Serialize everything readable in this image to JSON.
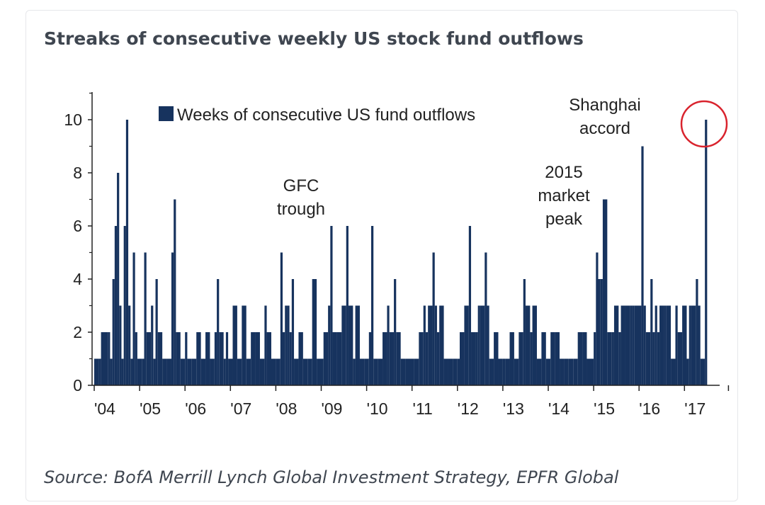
{
  "header": {
    "title": "Streaks of consecutive weekly US stock fund outflows"
  },
  "footer": {
    "source": "Source: BofA Merrill Lynch Global Investment Strategy, EPFR Global"
  },
  "chart_data": {
    "type": "bar",
    "title": "Streaks of consecutive weekly US stock fund outflows",
    "xlabel": "",
    "ylabel": "",
    "ylim": [
      0,
      11
    ],
    "xlim": [
      2004,
      2018
    ],
    "y_ticks": [
      0,
      2,
      4,
      6,
      8,
      10
    ],
    "x_ticks": [
      {
        "year": 2004,
        "label": "'04"
      },
      {
        "year": 2005,
        "label": "'05"
      },
      {
        "year": 2006,
        "label": "'06"
      },
      {
        "year": 2007,
        "label": "'07"
      },
      {
        "year": 2008,
        "label": "'08"
      },
      {
        "year": 2009,
        "label": "'09"
      },
      {
        "year": 2010,
        "label": "'10"
      },
      {
        "year": 2011,
        "label": "'11"
      },
      {
        "year": 2012,
        "label": "'12"
      },
      {
        "year": 2013,
        "label": "'13"
      },
      {
        "year": 2014,
        "label": "'14"
      },
      {
        "year": 2015,
        "label": "'15"
      },
      {
        "year": 2016,
        "label": "'16"
      },
      {
        "year": 2017,
        "label": "'17"
      }
    ],
    "legend": {
      "label": "Weeks of consecutive US fund outflows",
      "position": "top-left",
      "color": "#17335e"
    },
    "series": [
      {
        "name": "Weeks of consecutive US fund outflows",
        "color": "#17335e",
        "points": [
          [
            2004.0,
            1
          ],
          [
            2004.1,
            1
          ],
          [
            2004.15,
            2
          ],
          [
            2004.3,
            2
          ],
          [
            2004.35,
            1
          ],
          [
            2004.4,
            4
          ],
          [
            2004.45,
            6
          ],
          [
            2004.5,
            8
          ],
          [
            2004.55,
            3
          ],
          [
            2004.6,
            1
          ],
          [
            2004.65,
            6
          ],
          [
            2004.7,
            10
          ],
          [
            2004.75,
            3
          ],
          [
            2004.8,
            1
          ],
          [
            2004.85,
            5
          ],
          [
            2004.9,
            2
          ],
          [
            2004.95,
            1
          ],
          [
            2005.05,
            1
          ],
          [
            2005.1,
            5
          ],
          [
            2005.15,
            2
          ],
          [
            2005.25,
            3
          ],
          [
            2005.3,
            1
          ],
          [
            2005.35,
            4
          ],
          [
            2005.4,
            2
          ],
          [
            2005.5,
            1
          ],
          [
            2005.6,
            1
          ],
          [
            2005.7,
            5
          ],
          [
            2005.75,
            7
          ],
          [
            2005.8,
            2
          ],
          [
            2005.9,
            1
          ],
          [
            2006.0,
            2
          ],
          [
            2006.05,
            1
          ],
          [
            2006.15,
            1
          ],
          [
            2006.25,
            2
          ],
          [
            2006.35,
            1
          ],
          [
            2006.45,
            2
          ],
          [
            2006.55,
            1
          ],
          [
            2006.65,
            2
          ],
          [
            2006.7,
            4
          ],
          [
            2006.75,
            2
          ],
          [
            2006.85,
            1
          ],
          [
            2006.9,
            2
          ],
          [
            2006.95,
            1
          ],
          [
            2007.05,
            3
          ],
          [
            2007.15,
            1
          ],
          [
            2007.25,
            3
          ],
          [
            2007.35,
            1
          ],
          [
            2007.45,
            2
          ],
          [
            2007.55,
            2
          ],
          [
            2007.65,
            1
          ],
          [
            2007.75,
            3
          ],
          [
            2007.8,
            2
          ],
          [
            2007.9,
            1
          ],
          [
            2008.0,
            1
          ],
          [
            2008.1,
            5
          ],
          [
            2008.15,
            2
          ],
          [
            2008.2,
            3
          ],
          [
            2008.25,
            3
          ],
          [
            2008.3,
            2
          ],
          [
            2008.35,
            4
          ],
          [
            2008.4,
            1
          ],
          [
            2008.5,
            2
          ],
          [
            2008.6,
            1
          ],
          [
            2008.7,
            1
          ],
          [
            2008.8,
            4
          ],
          [
            2008.9,
            1
          ],
          [
            2009.0,
            1
          ],
          [
            2009.05,
            2
          ],
          [
            2009.15,
            3
          ],
          [
            2009.2,
            6
          ],
          [
            2009.25,
            2
          ],
          [
            2009.35,
            2
          ],
          [
            2009.45,
            3
          ],
          [
            2009.55,
            6
          ],
          [
            2009.6,
            3
          ],
          [
            2009.7,
            1
          ],
          [
            2009.75,
            3
          ],
          [
            2009.85,
            1
          ],
          [
            2009.95,
            1
          ],
          [
            2010.05,
            2
          ],
          [
            2010.1,
            6
          ],
          [
            2010.15,
            1
          ],
          [
            2010.25,
            1
          ],
          [
            2010.35,
            2
          ],
          [
            2010.45,
            3
          ],
          [
            2010.5,
            2
          ],
          [
            2010.6,
            4
          ],
          [
            2010.65,
            2
          ],
          [
            2010.75,
            1
          ],
          [
            2010.85,
            1
          ],
          [
            2010.95,
            1
          ],
          [
            2011.05,
            1
          ],
          [
            2011.15,
            2
          ],
          [
            2011.25,
            3
          ],
          [
            2011.3,
            2
          ],
          [
            2011.35,
            3
          ],
          [
            2011.45,
            5
          ],
          [
            2011.5,
            3
          ],
          [
            2011.55,
            2
          ],
          [
            2011.6,
            3
          ],
          [
            2011.7,
            1
          ],
          [
            2011.8,
            1
          ],
          [
            2011.9,
            1
          ],
          [
            2012.0,
            1
          ],
          [
            2012.05,
            2
          ],
          [
            2012.15,
            3
          ],
          [
            2012.25,
            6
          ],
          [
            2012.3,
            2
          ],
          [
            2012.4,
            2
          ],
          [
            2012.45,
            3
          ],
          [
            2012.5,
            3
          ],
          [
            2012.6,
            5
          ],
          [
            2012.65,
            3
          ],
          [
            2012.7,
            1
          ],
          [
            2012.8,
            2
          ],
          [
            2012.9,
            1
          ],
          [
            2013.0,
            1
          ],
          [
            2013.05,
            1
          ],
          [
            2013.15,
            2
          ],
          [
            2013.25,
            1
          ],
          [
            2013.35,
            2
          ],
          [
            2013.45,
            4
          ],
          [
            2013.5,
            3
          ],
          [
            2013.6,
            2
          ],
          [
            2013.65,
            3
          ],
          [
            2013.75,
            1
          ],
          [
            2013.85,
            2
          ],
          [
            2013.95,
            1
          ],
          [
            2014.05,
            2
          ],
          [
            2014.15,
            2
          ],
          [
            2014.25,
            1
          ],
          [
            2014.35,
            1
          ],
          [
            2014.45,
            1
          ],
          [
            2014.55,
            1
          ],
          [
            2014.65,
            2
          ],
          [
            2014.75,
            2
          ],
          [
            2014.85,
            1
          ],
          [
            2015.0,
            2
          ],
          [
            2015.05,
            5
          ],
          [
            2015.1,
            4
          ],
          [
            2015.15,
            4
          ],
          [
            2015.2,
            7
          ],
          [
            2015.3,
            2
          ],
          [
            2015.4,
            2
          ],
          [
            2015.45,
            3
          ],
          [
            2015.55,
            2
          ],
          [
            2015.6,
            3
          ],
          [
            2015.7,
            3
          ],
          [
            2015.8,
            3
          ],
          [
            2015.85,
            3
          ],
          [
            2015.9,
            3
          ],
          [
            2015.95,
            3
          ],
          [
            2016.05,
            9
          ],
          [
            2016.1,
            3
          ],
          [
            2016.15,
            2
          ],
          [
            2016.25,
            4
          ],
          [
            2016.3,
            2
          ],
          [
            2016.35,
            3
          ],
          [
            2016.4,
            2
          ],
          [
            2016.45,
            3
          ],
          [
            2016.55,
            3
          ],
          [
            2016.6,
            3
          ],
          [
            2016.7,
            1
          ],
          [
            2016.8,
            3
          ],
          [
            2016.85,
            2
          ],
          [
            2016.95,
            3
          ],
          [
            2017.05,
            1
          ],
          [
            2017.1,
            3
          ],
          [
            2017.15,
            3
          ],
          [
            2017.25,
            4
          ],
          [
            2017.3,
            3
          ],
          [
            2017.35,
            1
          ],
          [
            2017.45,
            10
          ]
        ]
      }
    ],
    "annotations": [
      {
        "text": [
          "GFC",
          "trough"
        ],
        "x": 2008.75,
        "y": 6.5
      },
      {
        "text": [
          "2015",
          "market",
          "peak"
        ],
        "x": 2014.6,
        "y": 5.8
      },
      {
        "text": [
          "Shanghai",
          "accord"
        ],
        "x": 2015.75,
        "y": 9.5
      }
    ],
    "highlight": {
      "x": 2017.45,
      "y": 10,
      "color": "#d9232d"
    },
    "grid": false
  }
}
